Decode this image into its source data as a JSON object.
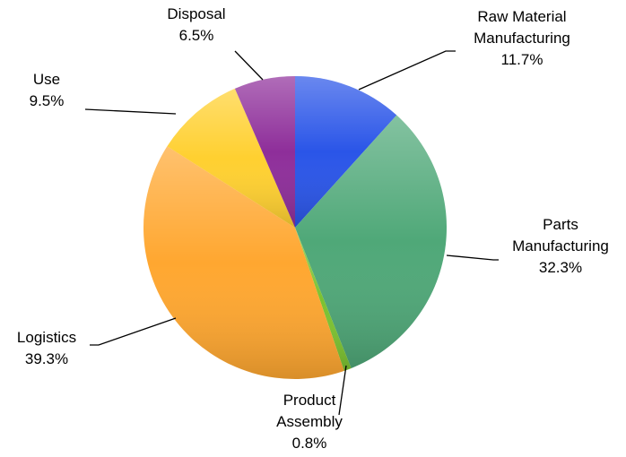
{
  "chart_data": {
    "type": "pie",
    "categories": [
      "Raw Material\nManufacturing",
      "Parts\nManufacturing",
      "Product\nAssembly",
      "Logistics",
      "Use",
      "Disposal"
    ],
    "values": [
      11.7,
      32.3,
      0.8,
      39.3,
      9.5,
      6.5
    ],
    "value_labels": [
      "11.7%",
      "32.3%",
      "0.8%",
      "39.3%",
      "9.5%",
      "6.5%"
    ],
    "colors": [
      "#2a55e8",
      "#4fa878",
      "#7cc230",
      "#ffa730",
      "#ffd030",
      "#8e2e9a"
    ]
  }
}
